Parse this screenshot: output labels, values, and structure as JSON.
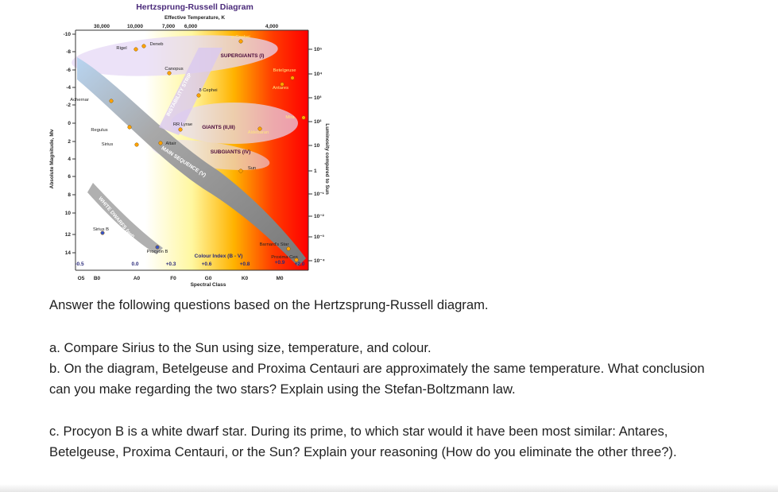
{
  "figure": {
    "title": "Hertzsprung-Russell Diagram",
    "top_axis_title": "Effective Temperature, K",
    "top_ticks": [
      "30,000",
      "10,000",
      "7,000",
      "6,000",
      "4,000"
    ],
    "left_axis_title": "Absolute Magnitude, Mv",
    "left_ticks": [
      "-10",
      "-8",
      "-6",
      "-4",
      "-2",
      "0",
      "2",
      "4",
      "6",
      "8",
      "10",
      "12",
      "14"
    ],
    "right_axis_title": "Luminosity compared to Sun",
    "right_ticks": [
      "10⁵",
      "10⁴",
      "10³",
      "10²",
      "10",
      "1",
      "10⁻¹",
      "10⁻²",
      "10⁻³",
      "10⁻⁴"
    ],
    "bottom_axis_title": "Spectral Class",
    "bottom_ticks": [
      "O5",
      "B0",
      "A0",
      "F0",
      "G0",
      "K0",
      "M0"
    ],
    "colour_index_title": "Colour Index (B - V)",
    "colour_index_ticks": [
      "-0.5",
      "0.0",
      "+0.3",
      "+0.6",
      "+0.8",
      "+0.9",
      "+2.0"
    ],
    "regions": [
      "SUPERGIANTS (I)",
      "GIANTS (II,III)",
      "SUBGIANTS (IV)",
      "MAIN SEQUENCE (V)",
      "WHITE DWARFS (wd)",
      "INSTABILITY STRIP"
    ],
    "stars": [
      "μ Cephei",
      "Rigel",
      "Deneb",
      "Canopus",
      "δ Cephei",
      "Betelgeuse",
      "Antares",
      "Achernar",
      "Mira",
      "RR Lyrae",
      "Regulus",
      "Aldebaran",
      "Sirius",
      "Altair",
      "Sun",
      "Sirius B",
      "Procyon B",
      "Barnard's Star",
      "Proxima Cen"
    ]
  },
  "intro": "Answer the following questions based on the Hertzsprung-Russell diagram.",
  "questions": [
    "a. Compare Sirius to the Sun using size, temperature, and colour.",
    "b. On the diagram, Betelgeuse and Proxima Centauri are approximately the same temperature. What conclusion can you make regarding the two stars? Explain using the Stefan-Boltzmann law.",
    "c. Procyon B is a white dwarf star. During its prime, to which star would it have been most similar: Antares, Betelgeuse, Proxima Centauri, or the Sun? Explain your reasoning (How do you eliminate the other three?)."
  ]
}
